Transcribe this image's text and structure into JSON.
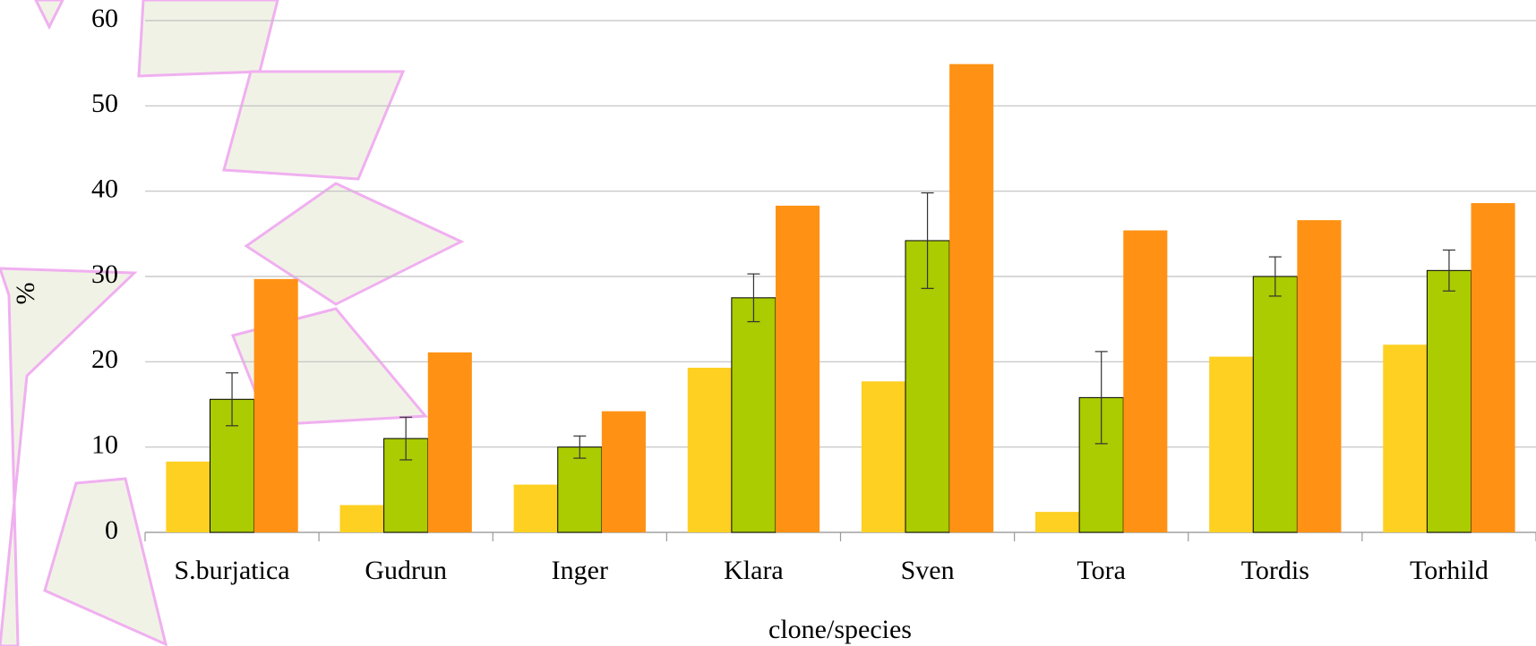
{
  "chart_data": {
    "type": "bar",
    "x_label": "clone/species",
    "y_label": "%",
    "categories": [
      "S.burjatica",
      "Gudrun",
      "Inger",
      "Klara",
      "Sven",
      "Tora",
      "Tordis",
      "Torhild"
    ],
    "series": [
      {
        "color": "#fdd022",
        "values": [
          8.3,
          3.2,
          5.6,
          19.3,
          17.7,
          2.4,
          20.6,
          22.0
        ]
      },
      {
        "color": "#aacc00",
        "values": [
          15.6,
          11.0,
          10.0,
          27.5,
          34.2,
          15.8,
          30.0,
          30.7
        ],
        "errors": [
          3.1,
          2.5,
          1.3,
          2.8,
          5.6,
          5.4,
          2.3,
          2.4
        ]
      },
      {
        "color": "#ff9214",
        "values": [
          29.7,
          21.1,
          14.2,
          38.3,
          54.9,
          35.4,
          36.6,
          38.6
        ]
      }
    ],
    "ylim": [
      0,
      60
    ],
    "yticks": [
      0,
      10,
      20,
      30,
      40,
      50,
      60
    ],
    "grid": true
  }
}
